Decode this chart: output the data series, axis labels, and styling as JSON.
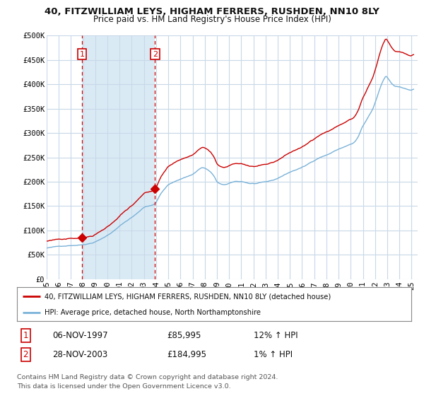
{
  "title_line1": "40, FITZWILLIAM LEYS, HIGHAM FERRERS, RUSHDEN, NN10 8LY",
  "title_line2": "Price paid vs. HM Land Registry's House Price Index (HPI)",
  "ylabel_ticks": [
    "£0",
    "£50K",
    "£100K",
    "£150K",
    "£200K",
    "£250K",
    "£300K",
    "£350K",
    "£400K",
    "£450K",
    "£500K"
  ],
  "ytick_values": [
    0,
    50000,
    100000,
    150000,
    200000,
    250000,
    300000,
    350000,
    400000,
    450000,
    500000
  ],
  "ylim": [
    0,
    500000
  ],
  "xlim_start": 1995.0,
  "xlim_end": 2025.5,
  "background_color": "#ffffff",
  "plot_bg_color": "#ffffff",
  "grid_color": "#c8d8e8",
  "shade_color": "#daeaf5",
  "sale1_x": 1997.917,
  "sale1_y": 85995,
  "sale2_x": 2003.917,
  "sale2_y": 184995,
  "sale1_date": "06-NOV-1997",
  "sale1_price": "£85,995",
  "sale1_hpi": "12% ↑ HPI",
  "sale2_date": "28-NOV-2003",
  "sale2_price": "£184,995",
  "sale2_hpi": "1% ↑ HPI",
  "hpi_line_color": "#7ab2d8",
  "price_line_color": "#cc0000",
  "marker_color": "#cc0000",
  "legend_label_price": "40, FITZWILLIAM LEYS, HIGHAM FERRERS, RUSHDEN, NN10 8LY (detached house)",
  "legend_label_hpi": "HPI: Average price, detached house, North Northamptonshire",
  "footnote": "Contains HM Land Registry data © Crown copyright and database right 2024.\nThis data is licensed under the Open Government Licence v3.0.",
  "xtick_years": [
    1995,
    1996,
    1997,
    1998,
    1999,
    2000,
    2001,
    2002,
    2003,
    2004,
    2005,
    2006,
    2007,
    2008,
    2009,
    2010,
    2011,
    2012,
    2013,
    2014,
    2015,
    2016,
    2017,
    2018,
    2019,
    2020,
    2021,
    2022,
    2023,
    2024,
    2025
  ],
  "xtick_labels": [
    "95",
    "96",
    "97",
    "98",
    "99",
    "00",
    "01",
    "02",
    "03",
    "04",
    "05",
    "06",
    "07",
    "08",
    "09",
    "10",
    "11",
    "12",
    "13",
    "14",
    "15",
    "16",
    "17",
    "18",
    "19",
    "20",
    "21",
    "22",
    "23",
    "24",
    "25"
  ]
}
